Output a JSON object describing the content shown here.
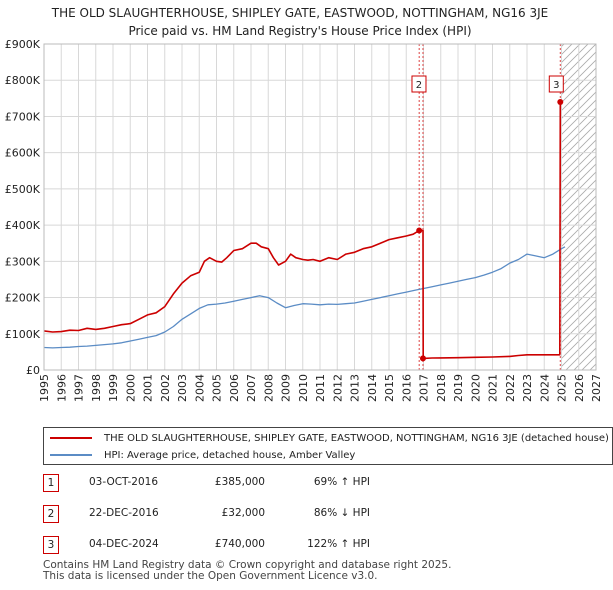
{
  "title_line1": "THE OLD SLAUGHTERHOUSE, SHIPLEY GATE, EASTWOOD, NOTTINGHAM, NG16 3JE",
  "title_line2": "Price paid vs. HM Land Registry's House Price Index (HPI)",
  "chart_data": {
    "type": "line",
    "title": "THE OLD SLAUGHTERHOUSE, SHIPLEY GATE, EASTWOOD, NOTTINGHAM, NG16 3JE — Price paid vs. HM Land Registry's House Price Index (HPI)",
    "xlim": [
      1995,
      2027
    ],
    "ylim": [
      0,
      900000
    ],
    "x_ticks": [
      1995,
      1996,
      1997,
      1998,
      1999,
      2000,
      2001,
      2002,
      2003,
      2004,
      2005,
      2006,
      2007,
      2008,
      2009,
      2010,
      2011,
      2012,
      2013,
      2014,
      2015,
      2016,
      2017,
      2018,
      2019,
      2020,
      2021,
      2022,
      2023,
      2024,
      2025,
      2026,
      2027
    ],
    "y_ticks": [
      0,
      100000,
      200000,
      300000,
      400000,
      500000,
      600000,
      700000,
      800000,
      900000
    ],
    "y_tick_labels": [
      "£0",
      "£100K",
      "£200K",
      "£300K",
      "£400K",
      "£500K",
      "£600K",
      "£700K",
      "£800K",
      "£900K"
    ],
    "grid": true,
    "forecast_start": 2025.0,
    "series": [
      {
        "name": "THE OLD SLAUGHTERHOUSE, SHIPLEY GATE, EASTWOOD, NOTTINGHAM, NG16 3JE (detached house)",
        "color": "#cc0000",
        "x": [
          1995.0,
          1995.5,
          1996.0,
          1996.5,
          1997.0,
          1997.5,
          1998.0,
          1998.5,
          1999.0,
          1999.5,
          2000.0,
          2000.5,
          2001.0,
          2001.5,
          2002.0,
          2002.5,
          2003.0,
          2003.5,
          2004.0,
          2004.3,
          2004.6,
          2005.0,
          2005.3,
          2005.6,
          2006.0,
          2006.5,
          2007.0,
          2007.3,
          2007.6,
          2008.0,
          2008.3,
          2008.6,
          2009.0,
          2009.3,
          2009.6,
          2010.0,
          2010.3,
          2010.6,
          2011.0,
          2011.5,
          2012.0,
          2012.5,
          2013.0,
          2013.5,
          2014.0,
          2014.5,
          2015.0,
          2015.5,
          2016.0,
          2016.4,
          2016.75,
          2016.97,
          2016.98,
          2017.5,
          2018.0,
          2019.0,
          2020.0,
          2021.0,
          2022.0,
          2022.5,
          2023.0,
          2024.0,
          2024.9,
          2024.93
        ],
        "y": [
          108000,
          105000,
          106000,
          110000,
          109000,
          115000,
          112000,
          115000,
          120000,
          125000,
          128000,
          140000,
          152000,
          158000,
          175000,
          210000,
          240000,
          260000,
          270000,
          300000,
          310000,
          300000,
          298000,
          310000,
          330000,
          335000,
          350000,
          350000,
          340000,
          335000,
          310000,
          290000,
          300000,
          320000,
          310000,
          305000,
          303000,
          305000,
          300000,
          310000,
          305000,
          320000,
          325000,
          335000,
          340000,
          350000,
          360000,
          365000,
          370000,
          375000,
          385000,
          385000,
          32000,
          33000,
          33500,
          34000,
          35000,
          36000,
          37500,
          40000,
          42000,
          42000,
          42000,
          740000
        ]
      },
      {
        "name": "HPI: Average price, detached house, Amber Valley",
        "color": "#5b8cc5",
        "x": [
          1995.0,
          1995.5,
          1996.0,
          1996.5,
          1997.0,
          1997.5,
          1998.0,
          1998.5,
          1999.0,
          1999.5,
          2000.0,
          2000.5,
          2001.0,
          2001.5,
          2002.0,
          2002.5,
          2003.0,
          2003.5,
          2004.0,
          2004.5,
          2005.0,
          2005.5,
          2006.0,
          2006.5,
          2007.0,
          2007.5,
          2008.0,
          2008.5,
          2009.0,
          2009.5,
          2010.0,
          2010.5,
          2011.0,
          2011.5,
          2012.0,
          2012.5,
          2013.0,
          2013.5,
          2014.0,
          2014.5,
          2015.0,
          2015.5,
          2016.0,
          2016.5,
          2017.0,
          2017.5,
          2018.0,
          2018.5,
          2019.0,
          2019.5,
          2020.0,
          2020.5,
          2021.0,
          2021.5,
          2022.0,
          2022.5,
          2023.0,
          2023.5,
          2024.0,
          2024.5,
          2025.0,
          2025.2
        ],
        "y": [
          62000,
          61000,
          62000,
          63000,
          65000,
          66000,
          68000,
          70000,
          72000,
          75000,
          80000,
          85000,
          90000,
          95000,
          105000,
          120000,
          140000,
          155000,
          170000,
          180000,
          182000,
          185000,
          190000,
          195000,
          200000,
          205000,
          200000,
          185000,
          172000,
          178000,
          183000,
          182000,
          180000,
          182000,
          181000,
          183000,
          185000,
          190000,
          195000,
          200000,
          205000,
          210000,
          215000,
          220000,
          225000,
          230000,
          235000,
          240000,
          245000,
          250000,
          255000,
          262000,
          270000,
          280000,
          295000,
          305000,
          320000,
          315000,
          310000,
          320000,
          335000,
          340000
        ]
      }
    ],
    "annotations": [
      {
        "label": "1",
        "x": 2016.75,
        "y": 385000
      },
      {
        "label": "2",
        "x": 2016.97,
        "y": 32000
      },
      {
        "label": "3",
        "x": 2024.93,
        "y": 740000
      }
    ]
  },
  "legend": {
    "property": "THE OLD SLAUGHTERHOUSE, SHIPLEY GATE, EASTWOOD, NOTTINGHAM, NG16 3JE (detached house)",
    "hpi": "HPI: Average price, detached house, Amber Valley"
  },
  "sales": [
    {
      "num": "1",
      "date": "03-OCT-2016",
      "price": "£385,000",
      "hpi": "69% ↑ HPI"
    },
    {
      "num": "2",
      "date": "22-DEC-2016",
      "price": "£32,000",
      "hpi": "86% ↓ HPI"
    },
    {
      "num": "3",
      "date": "04-DEC-2024",
      "price": "£740,000",
      "hpi": "122% ↑ HPI"
    }
  ],
  "footer_line1": "Contains HM Land Registry data © Crown copyright and database right 2025.",
  "footer_line2": "This data is licensed under the Open Government Licence v3.0.",
  "colors": {
    "property": "#cc0000",
    "hpi": "#5b8cc5",
    "grid": "#d8d8d8",
    "hatch": "#aaaaaa"
  }
}
